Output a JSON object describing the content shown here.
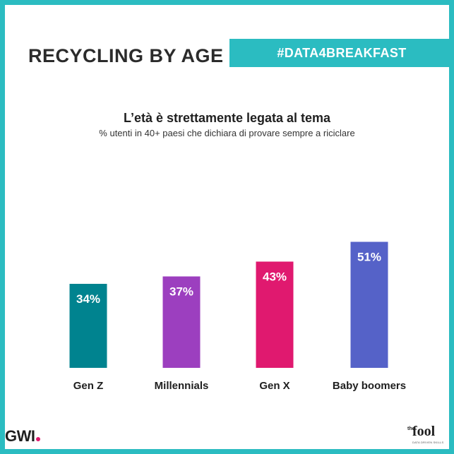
{
  "header": {
    "title": "RECYCLING BY AGE",
    "hashtag": "#DATA4BREAKFAST"
  },
  "colors": {
    "frame": "#2bbcc1",
    "banner": "#2bbcc1"
  },
  "chart_data": {
    "type": "bar",
    "title": "L’età è strettamente  legata al tema",
    "subtitle": "% utenti  in 40+ paesi che dichiara di provare sempre a riciclare",
    "categories": [
      "Gen Z",
      "Millennials",
      "Gen X",
      "Baby boomers"
    ],
    "values": [
      34,
      37,
      43,
      51
    ],
    "value_labels": [
      "34%",
      "37%",
      "43%",
      "51%"
    ],
    "colors": [
      "#00838f",
      "#9c3fbf",
      "#e0196f",
      "#5562c8"
    ],
    "ylim": [
      0,
      100
    ],
    "grid": false,
    "legend": "none"
  },
  "footer": {
    "brand_left": "GWI",
    "brand_right": "fool",
    "brand_right_prefix": "the",
    "brand_right_tagline": "DATA DRIVEN SKILLS"
  }
}
